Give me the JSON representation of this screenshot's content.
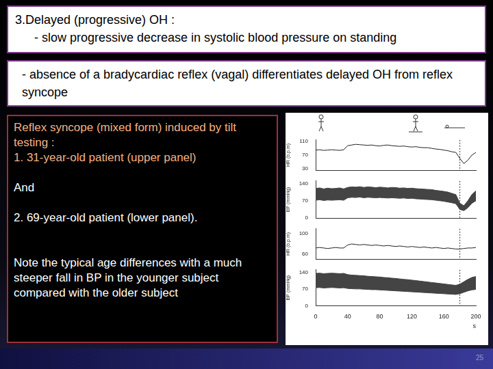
{
  "header": {
    "title": "3.Delayed (progressive) OH :",
    "line": "- slow progressive decrease in systolic blood pressure on standing"
  },
  "note": "- absence of a bradycardiac reflex (vagal) differentiates delayed OH from reflex syncope",
  "caption": [
    "Reflex syncope (mixed form) induced by tilt testing :",
    "1. 31-year-old  patient (upper panel)",
    "And",
    "2. 69-year-old patient  (lower panel).",
    "Note the typical age differences with a much steeper fall in BP in the younger subject compared with the older subject"
  ],
  "page_number": "25",
  "chart_data": [
    {
      "type": "line",
      "ylabel": "HR (b.p.m)",
      "grid": false,
      "tick_labels": "y",
      "xlim": [
        0,
        200
      ],
      "xticks": [
        0,
        40,
        80,
        120,
        160,
        200
      ],
      "ylim": [
        25,
        115
      ],
      "yticks": [
        30,
        70,
        110
      ],
      "vline_x": 180,
      "x": [
        0,
        5,
        10,
        15,
        20,
        25,
        30,
        35,
        40,
        45,
        50,
        55,
        60,
        65,
        70,
        75,
        80,
        85,
        90,
        95,
        100,
        105,
        110,
        115,
        120,
        125,
        130,
        135,
        140,
        145,
        150,
        155,
        160,
        165,
        170,
        175,
        180,
        185,
        190,
        195,
        200
      ],
      "series": [
        {
          "color": "#222222",
          "values": [
            85,
            86,
            84,
            85,
            86,
            85,
            84,
            86,
            98,
            100,
            102,
            101,
            100,
            99,
            100,
            98,
            97,
            99,
            100,
            98,
            97,
            96,
            97,
            95,
            94,
            95,
            93,
            92,
            92,
            90,
            88,
            87,
            85,
            83,
            80,
            78,
            60,
            45,
            55,
            70,
            78
          ]
        }
      ]
    },
    {
      "type": "line",
      "ylabel": "BP (mmHg)",
      "grid": false,
      "tick_labels": "y",
      "xlim": [
        0,
        200
      ],
      "xticks": [
        0,
        40,
        80,
        120,
        160,
        200
      ],
      "ylim": [
        0,
        150
      ],
      "yticks": [
        0,
        70,
        140
      ],
      "vline_x": 180,
      "x": [
        0,
        5,
        10,
        15,
        20,
        25,
        30,
        35,
        40,
        45,
        50,
        55,
        60,
        65,
        70,
        75,
        80,
        85,
        90,
        95,
        100,
        105,
        110,
        115,
        120,
        125,
        130,
        135,
        140,
        145,
        150,
        155,
        160,
        165,
        170,
        175,
        180,
        185,
        190,
        195,
        200
      ],
      "series": [
        {
          "color": "#444444",
          "values": [
            120,
            122,
            118,
            121,
            119,
            120,
            122,
            118,
            124,
            126,
            125,
            127,
            124,
            126,
            125,
            123,
            125,
            124,
            122,
            124,
            123,
            121,
            122,
            120,
            121,
            119,
            118,
            117,
            116,
            115,
            112,
            110,
            108,
            105,
            100,
            95,
            60,
            50,
            70,
            95,
            110
          ]
        },
        {
          "color": "#444444",
          "values": [
            72,
            74,
            71,
            73,
            72,
            73,
            74,
            72,
            82,
            84,
            83,
            85,
            82,
            84,
            83,
            82,
            83,
            82,
            81,
            82,
            81,
            80,
            81,
            79,
            80,
            78,
            77,
            76,
            75,
            74,
            72,
            70,
            68,
            65,
            62,
            58,
            35,
            30,
            42,
            60,
            70
          ]
        }
      ]
    },
    {
      "type": "line",
      "ylabel": "HR (b.p.m)",
      "grid": false,
      "tick_labels": "y",
      "xlim": [
        0,
        200
      ],
      "xticks": [
        0,
        40,
        80,
        120,
        160,
        200
      ],
      "ylim": [
        50,
        110
      ],
      "yticks": [
        60,
        100
      ],
      "vline_x": 180,
      "x": [
        0,
        5,
        10,
        15,
        20,
        25,
        30,
        35,
        40,
        45,
        50,
        55,
        60,
        65,
        70,
        75,
        80,
        85,
        90,
        95,
        100,
        105,
        110,
        115,
        120,
        125,
        130,
        135,
        140,
        145,
        150,
        155,
        160,
        165,
        170,
        175,
        180,
        185,
        190,
        195,
        200
      ],
      "series": [
        {
          "color": "#222222",
          "values": [
            72,
            73,
            72,
            71,
            72,
            73,
            72,
            72,
            78,
            80,
            79,
            78,
            79,
            78,
            77,
            78,
            77,
            76,
            77,
            76,
            75,
            76,
            75,
            74,
            75,
            74,
            73,
            74,
            73,
            72,
            73,
            72,
            71,
            72,
            71,
            70,
            70,
            71,
            72,
            72,
            73
          ]
        }
      ]
    },
    {
      "type": "line",
      "ylabel": "BP (mmHg)",
      "xlabel": "s",
      "grid": false,
      "xlim": [
        0,
        200
      ],
      "xticks": [
        0,
        40,
        80,
        120,
        160,
        200
      ],
      "ylim": [
        0,
        150
      ],
      "yticks": [
        0,
        70,
        140
      ],
      "vline_x": 180,
      "x": [
        0,
        5,
        10,
        15,
        20,
        25,
        30,
        35,
        40,
        45,
        50,
        55,
        60,
        65,
        70,
        75,
        80,
        85,
        90,
        95,
        100,
        105,
        110,
        115,
        120,
        125,
        130,
        135,
        140,
        145,
        150,
        155,
        160,
        165,
        170,
        175,
        180,
        185,
        190,
        195,
        200
      ],
      "series": [
        {
          "color": "#444444",
          "values": [
            135,
            136,
            134,
            135,
            136,
            135,
            134,
            135,
            130,
            128,
            127,
            126,
            125,
            123,
            122,
            121,
            120,
            118,
            117,
            115,
            114,
            112,
            110,
            109,
            107,
            105,
            103,
            101,
            99,
            97,
            95,
            93,
            91,
            89,
            87,
            85,
            90,
            100,
            110,
            118,
            122
          ]
        },
        {
          "color": "#444444",
          "values": [
            75,
            76,
            74,
            75,
            76,
            75,
            74,
            75,
            72,
            71,
            70,
            70,
            69,
            68,
            67,
            67,
            66,
            65,
            64,
            63,
            62,
            61,
            60,
            59,
            58,
            57,
            56,
            55,
            54,
            53,
            52,
            51,
            50,
            49,
            48,
            47,
            50,
            56,
            62,
            66,
            68
          ]
        }
      ]
    }
  ]
}
